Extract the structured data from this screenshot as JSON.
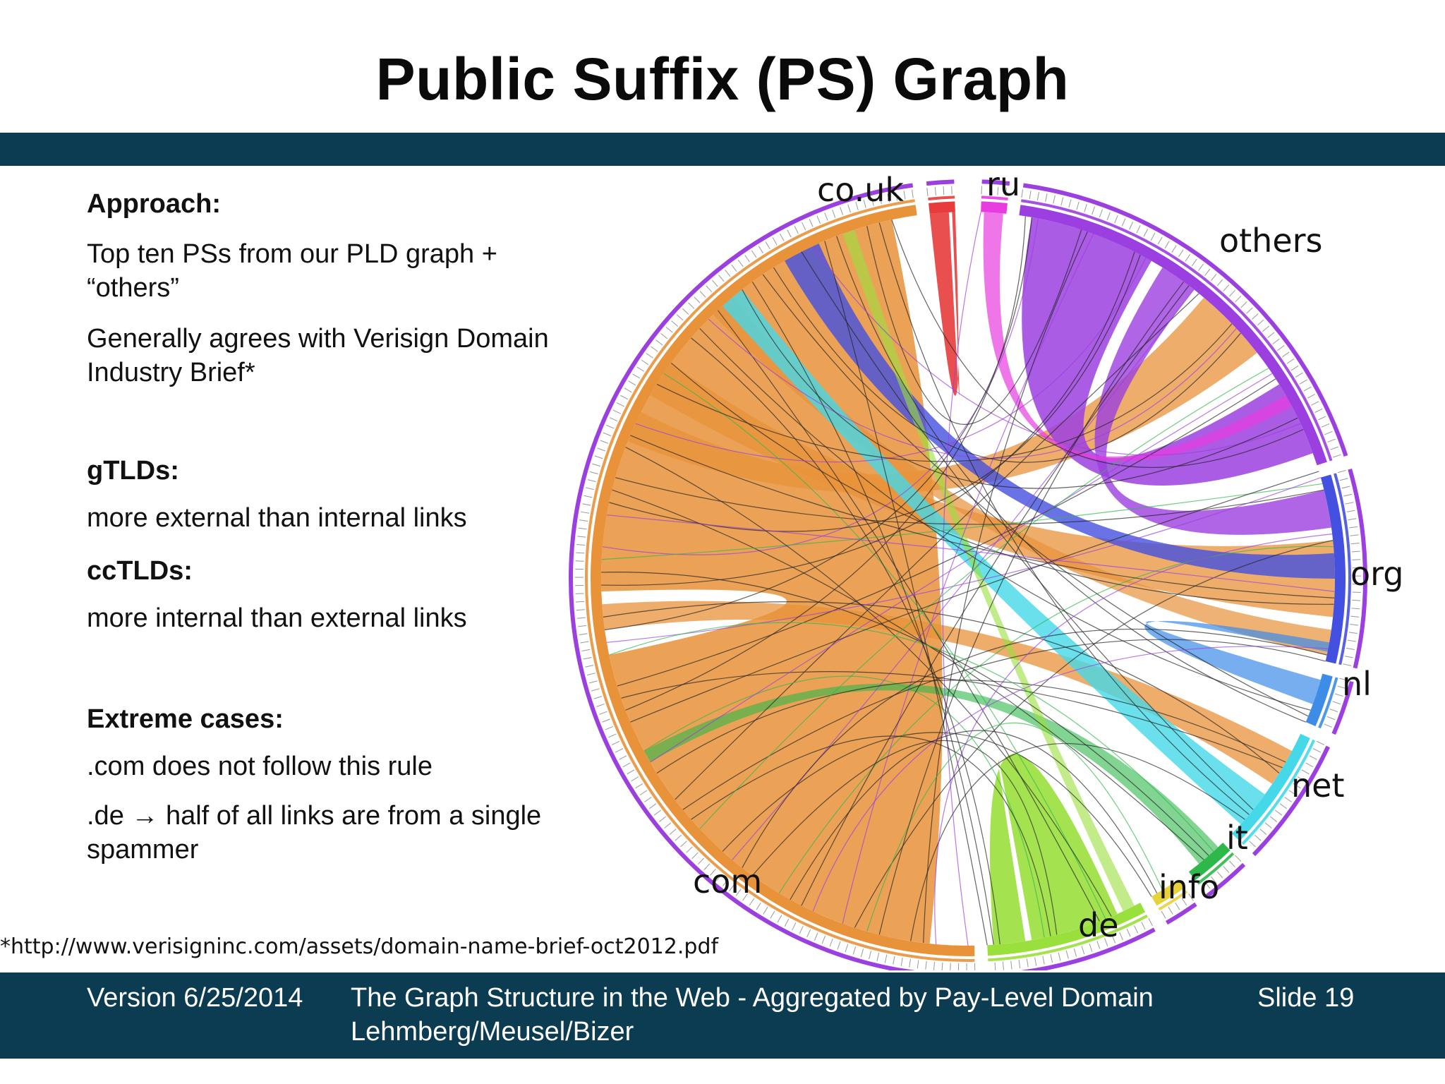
{
  "title": "Public Suffix (PS) Graph",
  "left": {
    "approach_head": "Approach:",
    "approach_text1": "Top ten PSs from our PLD graph + “others”",
    "approach_text2": "Generally agrees with Verisign Domain Industry Brief*",
    "gtld_head": "gTLDs:",
    "gtld_text": "more external than internal links",
    "cctld_head": "ccTLDs:",
    "cctld_text": "more internal than external links",
    "extreme_head": "Extreme cases:",
    "extreme_text1": ".com does not follow this rule",
    "extreme_text2": ".de → half of all links are from a single spammer"
  },
  "footnote": "*http://www.verisigninc.com/assets/domain-name-brief-oct2012.pdf",
  "footer": {
    "version": "Version 6/25/2014",
    "title_line1": "The Graph Structure in the Web - Aggregated by Pay-Level Domain",
    "title_line2": "Lehmberg/Meusel/Bizer",
    "slide": "Slide 19"
  },
  "diagram": {
    "labels": {
      "co_uk": "co.uk",
      "ru": "ru",
      "others": "others",
      "org": "org",
      "nl": "nl",
      "net": "net",
      "it": "it",
      "info": "info",
      "de": "de",
      "com": "com"
    },
    "colors": {
      "com": "#e8923a",
      "others": "#9b3fe0",
      "org": "#4450e0",
      "net": "#45d8e8",
      "de": "#9ae03c",
      "co_uk": "#e83c3c",
      "ru": "#e83ce0",
      "nl": "#3c8ce8",
      "it": "#2fb84a",
      "info": "#e8d23c"
    }
  }
}
